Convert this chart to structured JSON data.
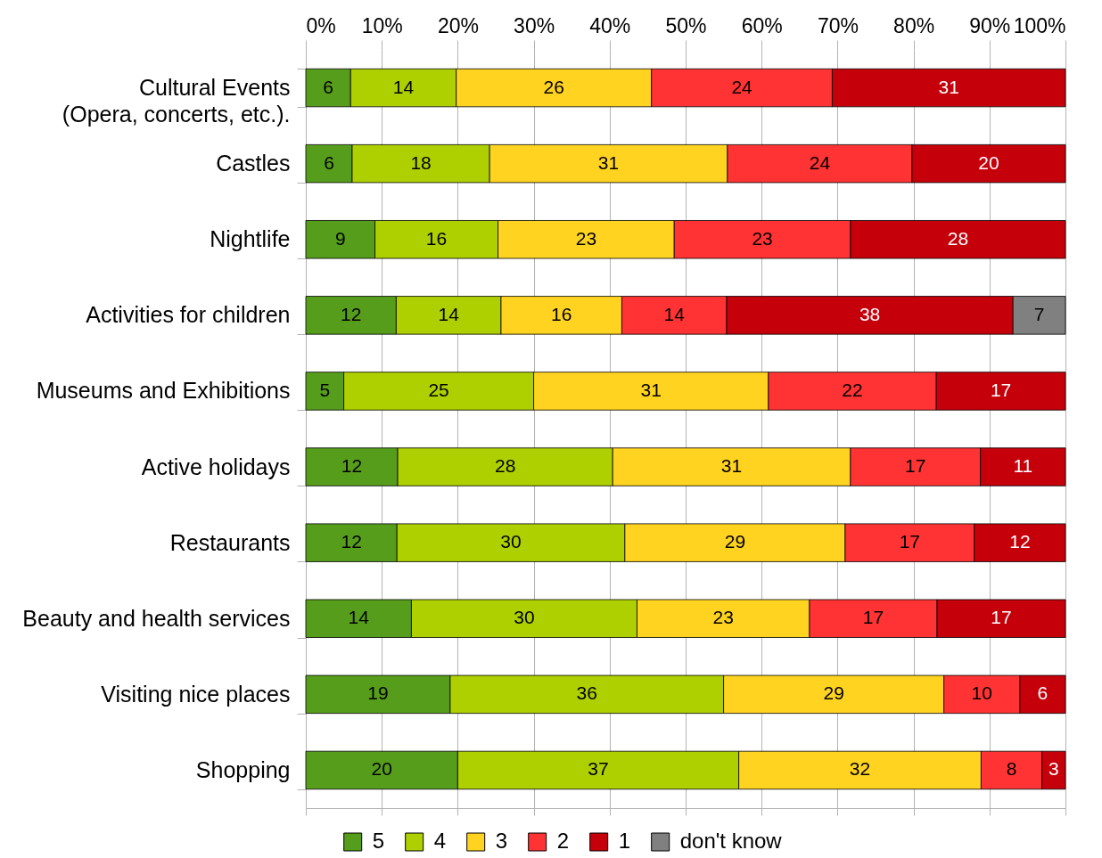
{
  "chart_data": {
    "type": "bar",
    "orientation": "horizontal",
    "stacked": true,
    "categories": [
      "Cultural Events\n(Opera, concerts, etc.).",
      "Castles",
      "Nightlife",
      "Activities for children",
      "Museums and Exhibitions",
      "Active holidays",
      "Restaurants",
      "Beauty and health services",
      "Visiting nice places",
      "Shopping"
    ],
    "series": [
      {
        "name": "5",
        "color": "#579d1c",
        "values": [
          5.9,
          6.1,
          9.1,
          11.9,
          5.0,
          12.1,
          12.0,
          13.9,
          19.0,
          20.0
        ],
        "value_labels": [
          "6",
          "6",
          "9",
          "12",
          "5",
          "12",
          "12",
          "14",
          "19",
          "20"
        ]
      },
      {
        "name": "4",
        "color": "#aecf00",
        "values": [
          13.9,
          18.1,
          16.2,
          13.8,
          25.0,
          28.3,
          30.0,
          29.7,
          36.0,
          37.0
        ],
        "value_labels": [
          "14",
          "18",
          "16",
          "14",
          "25",
          "28",
          "30",
          "30",
          "36",
          "37"
        ]
      },
      {
        "name": "3",
        "color": "#ffd320",
        "values": [
          25.7,
          31.3,
          23.2,
          15.9,
          30.9,
          31.3,
          29.0,
          22.7,
          29.0,
          31.9
        ],
        "value_labels": [
          "26",
          "31",
          "23",
          "16",
          "31",
          "31",
          "29",
          "23",
          "29",
          "32"
        ]
      },
      {
        "name": "2",
        "color": "#ff3333",
        "values": [
          23.8,
          24.3,
          23.2,
          13.8,
          22.1,
          17.1,
          17.0,
          16.8,
          10.0,
          8.0
        ],
        "value_labels": [
          "24",
          "24",
          "23",
          "14",
          "22",
          "17",
          "17",
          "17",
          "10",
          "8"
        ]
      },
      {
        "name": "1",
        "color": "#c5000b",
        "values": [
          30.7,
          20.2,
          28.3,
          37.7,
          17.0,
          11.2,
          12.0,
          16.9,
          6.0,
          3.1
        ],
        "value_labels": [
          "31",
          "20",
          "28",
          "38",
          "17",
          "11",
          "12",
          "17",
          "6",
          "3"
        ]
      },
      {
        "name": "don't know",
        "color": "#808080",
        "values": [
          null,
          null,
          null,
          6.9,
          null,
          null,
          null,
          null,
          null,
          null
        ],
        "value_labels": [
          null,
          null,
          null,
          "7",
          null,
          null,
          null,
          null,
          null,
          null
        ]
      }
    ],
    "xlim": [
      0,
      100
    ],
    "xticks": [
      {
        "value": 0,
        "label": "0%"
      },
      {
        "value": 10,
        "label": "10%"
      },
      {
        "value": 20,
        "label": "20%"
      },
      {
        "value": 30,
        "label": "30%"
      },
      {
        "value": 40,
        "label": "40%"
      },
      {
        "value": 50,
        "label": "50%"
      },
      {
        "value": 60,
        "label": "60%"
      },
      {
        "value": 70,
        "label": "70%"
      },
      {
        "value": 80,
        "label": "80%"
      },
      {
        "value": 90,
        "label": "90%"
      },
      {
        "value": 100,
        "label": "100%"
      }
    ],
    "grid": "x",
    "legend": "bottom"
  }
}
